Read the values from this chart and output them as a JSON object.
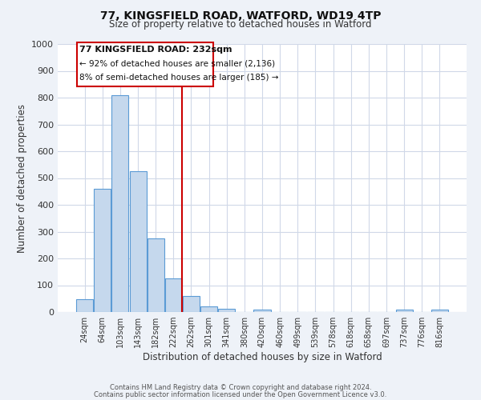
{
  "title1": "77, KINGSFIELD ROAD, WATFORD, WD19 4TP",
  "title2": "Size of property relative to detached houses in Watford",
  "xlabel": "Distribution of detached houses by size in Watford",
  "ylabel": "Number of detached properties",
  "categories": [
    "24sqm",
    "64sqm",
    "103sqm",
    "143sqm",
    "182sqm",
    "222sqm",
    "262sqm",
    "301sqm",
    "341sqm",
    "380sqm",
    "420sqm",
    "460sqm",
    "499sqm",
    "539sqm",
    "578sqm",
    "618sqm",
    "658sqm",
    "697sqm",
    "737sqm",
    "776sqm",
    "816sqm"
  ],
  "bar_heights": [
    47,
    460,
    810,
    525,
    275,
    125,
    60,
    22,
    12,
    0,
    10,
    0,
    0,
    0,
    0,
    0,
    0,
    0,
    10,
    0,
    10
  ],
  "bar_color": "#c5d8ed",
  "bar_edge_color": "#5b9bd5",
  "vline_x": 5.5,
  "vline_color": "#cc0000",
  "ylim": [
    0,
    1000
  ],
  "yticks": [
    0,
    100,
    200,
    300,
    400,
    500,
    600,
    700,
    800,
    900,
    1000
  ],
  "annotation_title": "77 KINGSFIELD ROAD: 232sqm",
  "annotation_line1": "← 92% of detached houses are smaller (2,136)",
  "annotation_line2": "8% of semi-detached houses are larger (185) →",
  "annotation_box_color": "#cc0000",
  "grid_color": "#d0d8e8",
  "plot_bg_color": "#ffffff",
  "fig_bg_color": "#eef2f8",
  "footer1": "Contains HM Land Registry data © Crown copyright and database right 2024.",
  "footer2": "Contains public sector information licensed under the Open Government Licence v3.0."
}
